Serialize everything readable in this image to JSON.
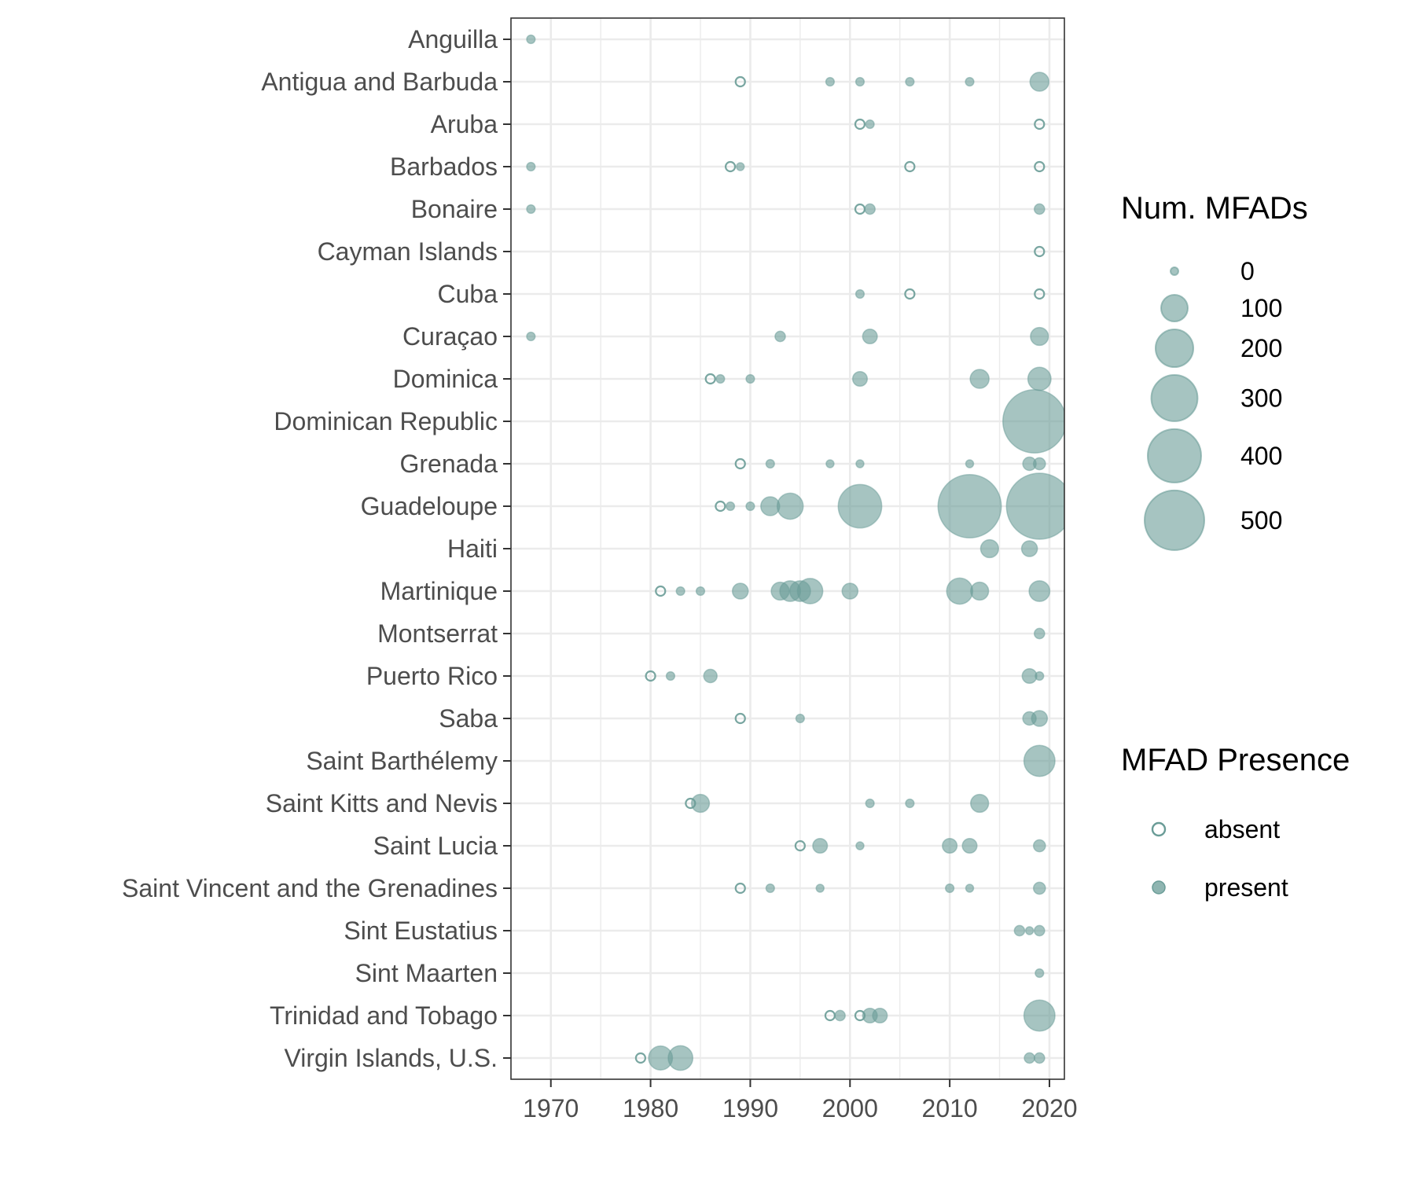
{
  "chart_data": {
    "type": "scatter",
    "title": "",
    "xlabel": "",
    "ylabel": "",
    "xlim": [
      1966,
      2021.5
    ],
    "x_ticks": [
      1970,
      1980,
      1990,
      2000,
      2010,
      2020
    ],
    "categories": [
      "Anguilla",
      "Antigua and Barbuda",
      "Aruba",
      "Barbados",
      "Bonaire",
      "Cayman Islands",
      "Cuba",
      "Curaçao",
      "Dominica",
      "Dominican Republic",
      "Grenada",
      "Guadeloupe",
      "Haiti",
      "Martinique",
      "Montserrat",
      "Puerto Rico",
      "Saba",
      "Saint Barthélemy",
      "Saint Kitts and Nevis",
      "Saint Lucia",
      "Saint Vincent and the Grenadines",
      "Sint Eustatius",
      "Sint Maarten",
      "Trinidad and Tobago",
      "Virgin Islands, U.S."
    ],
    "grid": true,
    "legend_position": "right",
    "colors": {
      "fill": "#6a9c97",
      "stroke": "#6a9c97",
      "axis": "#333333",
      "grid": "#ebebeb",
      "text": "#4d4d4d"
    },
    "size_legend": {
      "title": "Num. MFADs",
      "values": [
        0,
        100,
        200,
        300,
        400,
        500
      ]
    },
    "presence_legend": {
      "title": "MFAD Presence",
      "entries": [
        {
          "label": "absent",
          "presence": "absent"
        },
        {
          "label": "present",
          "presence": "present"
        }
      ]
    },
    "points": [
      {
        "country": "Anguilla",
        "year": 1968,
        "num_mfads": 10,
        "presence": "present"
      },
      {
        "country": "Antigua and Barbuda",
        "year": 1989,
        "num_mfads": 0,
        "presence": "absent"
      },
      {
        "country": "Antigua and Barbuda",
        "year": 1998,
        "num_mfads": 10,
        "presence": "present"
      },
      {
        "country": "Antigua and Barbuda",
        "year": 2001,
        "num_mfads": 10,
        "presence": "present"
      },
      {
        "country": "Antigua and Barbuda",
        "year": 2006,
        "num_mfads": 10,
        "presence": "present"
      },
      {
        "country": "Antigua and Barbuda",
        "year": 2012,
        "num_mfads": 10,
        "presence": "present"
      },
      {
        "country": "Antigua and Barbuda",
        "year": 2019,
        "num_mfads": 50,
        "presence": "present"
      },
      {
        "country": "Aruba",
        "year": 2001,
        "num_mfads": 0,
        "presence": "absent"
      },
      {
        "country": "Aruba",
        "year": 2002,
        "num_mfads": 10,
        "presence": "present"
      },
      {
        "country": "Aruba",
        "year": 2019,
        "num_mfads": 0,
        "presence": "absent"
      },
      {
        "country": "Barbados",
        "year": 1968,
        "num_mfads": 10,
        "presence": "present"
      },
      {
        "country": "Barbados",
        "year": 1988,
        "num_mfads": 0,
        "presence": "absent"
      },
      {
        "country": "Barbados",
        "year": 1989,
        "num_mfads": 5,
        "presence": "present"
      },
      {
        "country": "Barbados",
        "year": 2006,
        "num_mfads": 0,
        "presence": "absent"
      },
      {
        "country": "Barbados",
        "year": 2019,
        "num_mfads": 0,
        "presence": "absent"
      },
      {
        "country": "Bonaire",
        "year": 1968,
        "num_mfads": 10,
        "presence": "present"
      },
      {
        "country": "Bonaire",
        "year": 2001,
        "num_mfads": 0,
        "presence": "absent"
      },
      {
        "country": "Bonaire",
        "year": 2002,
        "num_mfads": 15,
        "presence": "present"
      },
      {
        "country": "Bonaire",
        "year": 2019,
        "num_mfads": 15,
        "presence": "present"
      },
      {
        "country": "Cayman Islands",
        "year": 2019,
        "num_mfads": 0,
        "presence": "absent"
      },
      {
        "country": "Cuba",
        "year": 2001,
        "num_mfads": 10,
        "presence": "present"
      },
      {
        "country": "Cuba",
        "year": 2006,
        "num_mfads": 0,
        "presence": "absent"
      },
      {
        "country": "Cuba",
        "year": 2019,
        "num_mfads": 0,
        "presence": "absent"
      },
      {
        "country": "Curaçao",
        "year": 1968,
        "num_mfads": 10,
        "presence": "present"
      },
      {
        "country": "Curaçao",
        "year": 1993,
        "num_mfads": 15,
        "presence": "present"
      },
      {
        "country": "Curaçao",
        "year": 2002,
        "num_mfads": 30,
        "presence": "present"
      },
      {
        "country": "Curaçao",
        "year": 2019,
        "num_mfads": 45,
        "presence": "present"
      },
      {
        "country": "Dominica",
        "year": 1986,
        "num_mfads": 0,
        "presence": "absent"
      },
      {
        "country": "Dominica",
        "year": 1987,
        "num_mfads": 10,
        "presence": "present"
      },
      {
        "country": "Dominica",
        "year": 1990,
        "num_mfads": 10,
        "presence": "present"
      },
      {
        "country": "Dominica",
        "year": 2001,
        "num_mfads": 30,
        "presence": "present"
      },
      {
        "country": "Dominica",
        "year": 2013,
        "num_mfads": 50,
        "presence": "present"
      },
      {
        "country": "Dominica",
        "year": 2019,
        "num_mfads": 75,
        "presence": "present"
      },
      {
        "country": "Dominican Republic",
        "year": 2018.5,
        "num_mfads": 560,
        "presence": "present"
      },
      {
        "country": "Grenada",
        "year": 1989,
        "num_mfads": 0,
        "presence": "absent"
      },
      {
        "country": "Grenada",
        "year": 1992,
        "num_mfads": 10,
        "presence": "present"
      },
      {
        "country": "Grenada",
        "year": 1998,
        "num_mfads": 5,
        "presence": "present"
      },
      {
        "country": "Grenada",
        "year": 2001,
        "num_mfads": 5,
        "presence": "present"
      },
      {
        "country": "Grenada",
        "year": 2012,
        "num_mfads": 5,
        "presence": "present"
      },
      {
        "country": "Grenada",
        "year": 2018,
        "num_mfads": 25,
        "presence": "present"
      },
      {
        "country": "Grenada",
        "year": 2019,
        "num_mfads": 20,
        "presence": "present"
      },
      {
        "country": "Guadeloupe",
        "year": 1987,
        "num_mfads": 0,
        "presence": "absent"
      },
      {
        "country": "Guadeloupe",
        "year": 1988,
        "num_mfads": 10,
        "presence": "present"
      },
      {
        "country": "Guadeloupe",
        "year": 1990,
        "num_mfads": 10,
        "presence": "present"
      },
      {
        "country": "Guadeloupe",
        "year": 1992,
        "num_mfads": 50,
        "presence": "present"
      },
      {
        "country": "Guadeloupe",
        "year": 1994,
        "num_mfads": 95,
        "presence": "present"
      },
      {
        "country": "Guadeloupe",
        "year": 2001,
        "num_mfads": 265,
        "presence": "present"
      },
      {
        "country": "Guadeloupe",
        "year": 2012,
        "num_mfads": 560,
        "presence": "present"
      },
      {
        "country": "Guadeloupe",
        "year": 2019,
        "num_mfads": 610,
        "presence": "present"
      },
      {
        "country": "Haiti",
        "year": 2014,
        "num_mfads": 45,
        "presence": "present"
      },
      {
        "country": "Haiti",
        "year": 2018,
        "num_mfads": 35,
        "presence": "present"
      },
      {
        "country": "Martinique",
        "year": 1981,
        "num_mfads": 0,
        "presence": "absent"
      },
      {
        "country": "Martinique",
        "year": 1983,
        "num_mfads": 10,
        "presence": "present"
      },
      {
        "country": "Martinique",
        "year": 1985,
        "num_mfads": 10,
        "presence": "present"
      },
      {
        "country": "Martinique",
        "year": 1989,
        "num_mfads": 35,
        "presence": "present"
      },
      {
        "country": "Martinique",
        "year": 1993,
        "num_mfads": 45,
        "presence": "present"
      },
      {
        "country": "Martinique",
        "year": 1994,
        "num_mfads": 60,
        "presence": "present"
      },
      {
        "country": "Martinique",
        "year": 1995,
        "num_mfads": 60,
        "presence": "present"
      },
      {
        "country": "Martinique",
        "year": 1996,
        "num_mfads": 90,
        "presence": "present"
      },
      {
        "country": "Martinique",
        "year": 2000,
        "num_mfads": 35,
        "presence": "present"
      },
      {
        "country": "Martinique",
        "year": 2011,
        "num_mfads": 95,
        "presence": "present"
      },
      {
        "country": "Martinique",
        "year": 2013,
        "num_mfads": 45,
        "presence": "present"
      },
      {
        "country": "Martinique",
        "year": 2019,
        "num_mfads": 60,
        "presence": "present"
      },
      {
        "country": "Montserrat",
        "year": 2019,
        "num_mfads": 15,
        "presence": "present"
      },
      {
        "country": "Puerto Rico",
        "year": 1980,
        "num_mfads": 0,
        "presence": "absent"
      },
      {
        "country": "Puerto Rico",
        "year": 1982,
        "num_mfads": 10,
        "presence": "present"
      },
      {
        "country": "Puerto Rico",
        "year": 1986,
        "num_mfads": 25,
        "presence": "present"
      },
      {
        "country": "Puerto Rico",
        "year": 2018,
        "num_mfads": 30,
        "presence": "present"
      },
      {
        "country": "Puerto Rico",
        "year": 2019,
        "num_mfads": 10,
        "presence": "present"
      },
      {
        "country": "Saba",
        "year": 1989,
        "num_mfads": 0,
        "presence": "absent"
      },
      {
        "country": "Saba",
        "year": 1995,
        "num_mfads": 10,
        "presence": "present"
      },
      {
        "country": "Saba",
        "year": 2018,
        "num_mfads": 25,
        "presence": "present"
      },
      {
        "country": "Saba",
        "year": 2019,
        "num_mfads": 35,
        "presence": "present"
      },
      {
        "country": "Saint Barthélemy",
        "year": 2019,
        "num_mfads": 135,
        "presence": "present"
      },
      {
        "country": "Saint Kitts and Nevis",
        "year": 1984,
        "num_mfads": 0,
        "presence": "absent"
      },
      {
        "country": "Saint Kitts and Nevis",
        "year": 1985,
        "num_mfads": 45,
        "presence": "present"
      },
      {
        "country": "Saint Kitts and Nevis",
        "year": 2002,
        "num_mfads": 10,
        "presence": "present"
      },
      {
        "country": "Saint Kitts and Nevis",
        "year": 2006,
        "num_mfads": 10,
        "presence": "present"
      },
      {
        "country": "Saint Kitts and Nevis",
        "year": 2013,
        "num_mfads": 45,
        "presence": "present"
      },
      {
        "country": "Saint Lucia",
        "year": 1995,
        "num_mfads": 0,
        "presence": "absent"
      },
      {
        "country": "Saint Lucia",
        "year": 1997,
        "num_mfads": 30,
        "presence": "present"
      },
      {
        "country": "Saint Lucia",
        "year": 2001,
        "num_mfads": 5,
        "presence": "present"
      },
      {
        "country": "Saint Lucia",
        "year": 2010,
        "num_mfads": 30,
        "presence": "present"
      },
      {
        "country": "Saint Lucia",
        "year": 2012,
        "num_mfads": 30,
        "presence": "present"
      },
      {
        "country": "Saint Lucia",
        "year": 2019,
        "num_mfads": 20,
        "presence": "present"
      },
      {
        "country": "Saint Vincent and the Grenadines",
        "year": 1989,
        "num_mfads": 0,
        "presence": "absent"
      },
      {
        "country": "Saint Vincent and the Grenadines",
        "year": 1992,
        "num_mfads": 10,
        "presence": "present"
      },
      {
        "country": "Saint Vincent and the Grenadines",
        "year": 1997,
        "num_mfads": 5,
        "presence": "present"
      },
      {
        "country": "Saint Vincent and the Grenadines",
        "year": 2010,
        "num_mfads": 10,
        "presence": "present"
      },
      {
        "country": "Saint Vincent and the Grenadines",
        "year": 2012,
        "num_mfads": 5,
        "presence": "present"
      },
      {
        "country": "Saint Vincent and the Grenadines",
        "year": 2019,
        "num_mfads": 20,
        "presence": "present"
      },
      {
        "country": "Sint Eustatius",
        "year": 2017,
        "num_mfads": 15,
        "presence": "present"
      },
      {
        "country": "Sint Eustatius",
        "year": 2018,
        "num_mfads": 5,
        "presence": "present"
      },
      {
        "country": "Sint Eustatius",
        "year": 2019,
        "num_mfads": 15,
        "presence": "present"
      },
      {
        "country": "Sint Maarten",
        "year": 2019,
        "num_mfads": 10,
        "presence": "present"
      },
      {
        "country": "Trinidad and Tobago",
        "year": 1998,
        "num_mfads": 0,
        "presence": "absent"
      },
      {
        "country": "Trinidad and Tobago",
        "year": 1999,
        "num_mfads": 15,
        "presence": "present"
      },
      {
        "country": "Trinidad and Tobago",
        "year": 2001,
        "num_mfads": 0,
        "presence": "absent"
      },
      {
        "country": "Trinidad and Tobago",
        "year": 2002,
        "num_mfads": 30,
        "presence": "present"
      },
      {
        "country": "Trinidad and Tobago",
        "year": 2003,
        "num_mfads": 30,
        "presence": "present"
      },
      {
        "country": "Trinidad and Tobago",
        "year": 2019,
        "num_mfads": 135,
        "presence": "present"
      },
      {
        "country": "Virgin Islands, U.S.",
        "year": 1979,
        "num_mfads": 0,
        "presence": "absent"
      },
      {
        "country": "Virgin Islands, U.S.",
        "year": 1981,
        "num_mfads": 80,
        "presence": "present"
      },
      {
        "country": "Virgin Islands, U.S.",
        "year": 1983,
        "num_mfads": 85,
        "presence": "present"
      },
      {
        "country": "Virgin Islands, U.S.",
        "year": 2018,
        "num_mfads": 15,
        "presence": "present"
      },
      {
        "country": "Virgin Islands, U.S.",
        "year": 2019,
        "num_mfads": 15,
        "presence": "present"
      }
    ]
  }
}
